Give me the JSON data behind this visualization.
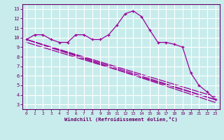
{
  "xlabel": "Windchill (Refroidissement éolien,°C)",
  "background_color": "#c8ecec",
  "grid_color": "#ffffff",
  "line_color": "#990099",
  "xlim": [
    -0.5,
    23.5
  ],
  "ylim": [
    2.5,
    13.5
  ],
  "xticks": [
    0,
    1,
    2,
    3,
    4,
    5,
    6,
    7,
    8,
    9,
    10,
    11,
    12,
    13,
    14,
    15,
    16,
    17,
    18,
    19,
    20,
    21,
    22,
    23
  ],
  "yticks": [
    3,
    4,
    5,
    6,
    7,
    8,
    9,
    10,
    11,
    12,
    13
  ],
  "line1_x": [
    0,
    1,
    2,
    3,
    4,
    5,
    6,
    7,
    8,
    9,
    10,
    11,
    12,
    13,
    14,
    15,
    16,
    17,
    18,
    19,
    20,
    21,
    22,
    23
  ],
  "line1_y": [
    9.8,
    10.3,
    10.3,
    9.8,
    9.5,
    9.5,
    10.3,
    10.3,
    9.8,
    9.8,
    10.3,
    11.3,
    12.5,
    12.8,
    12.2,
    10.8,
    9.5,
    9.5,
    9.3,
    9.0,
    6.3,
    5.0,
    4.3,
    3.5
  ],
  "line2_x": [
    0,
    23
  ],
  "line2_y": [
    9.8,
    3.5
  ],
  "line3_x": [
    0,
    23
  ],
  "line3_y": [
    9.8,
    3.2
  ],
  "line4_x": [
    0,
    23
  ],
  "line4_y": [
    9.8,
    3.8
  ],
  "line5_x": [
    0,
    23
  ],
  "line5_y": [
    9.5,
    3.5
  ]
}
